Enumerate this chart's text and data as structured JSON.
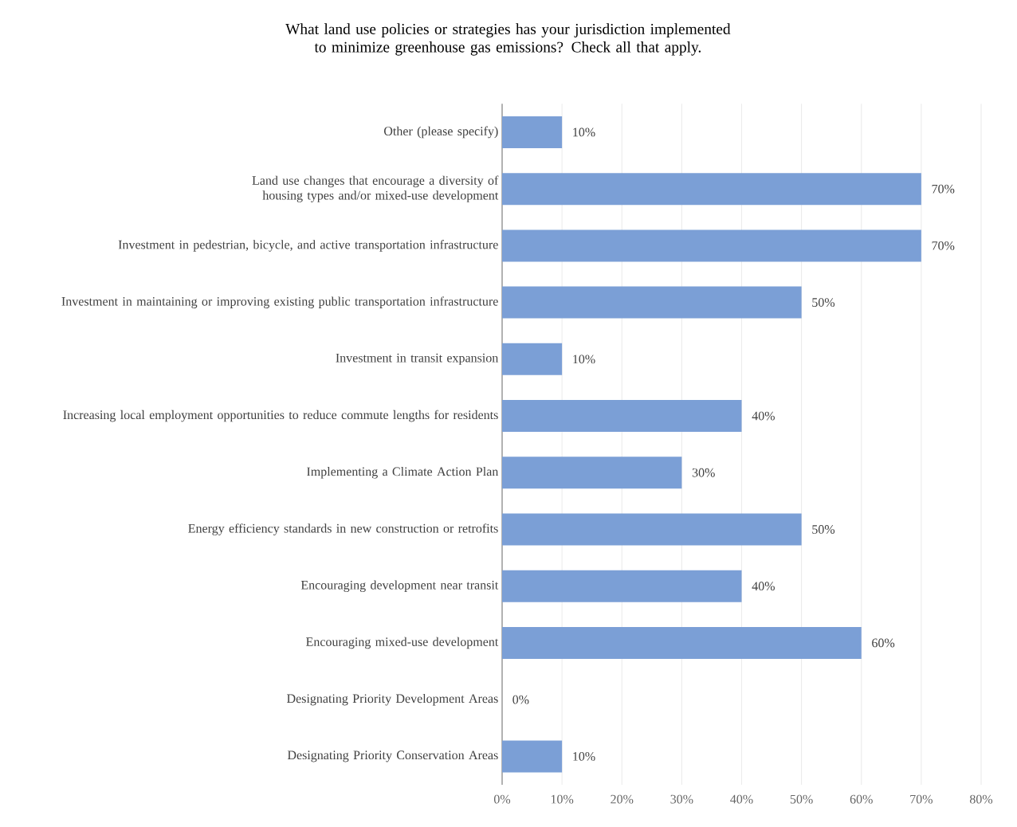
{
  "chart_data": {
    "type": "bar",
    "orientation": "horizontal",
    "title": "What land use policies or strategies has your jurisdiction implemented to minimize greenhouse gas emissions? Check all that apply.",
    "categories": [
      "Other (please specify)",
      "Land use changes that encourage a diversity of housing types and/or mixed-use development",
      "Investment in pedestrian, bicycle, and active transportation infrastructure",
      "Investment in maintaining or improving existing public transportation infrastructure",
      "Investment in transit expansion",
      "Increasing local employment opportunities to reduce commute lengths for residents",
      "Implementing a Climate Action Plan",
      "Energy efficiency standards in new construction or retrofits",
      "Encouraging development near transit",
      "Encouraging mixed-use development",
      "Designating Priority Development Areas",
      "Designating Priority Conservation Areas"
    ],
    "values": [
      10,
      70,
      70,
      50,
      10,
      40,
      30,
      50,
      40,
      60,
      0,
      10
    ],
    "value_labels": [
      "10%",
      "70%",
      "70%",
      "50%",
      "10%",
      "40%",
      "30%",
      "50%",
      "40%",
      "60%",
      "0%",
      "10%"
    ],
    "color": "#7b9fd6",
    "xlim": [
      0,
      80
    ],
    "xticks": [
      {
        "value": 0,
        "label": "0%"
      },
      {
        "value": 10,
        "label": "10%"
      },
      {
        "value": 20,
        "label": "20%"
      },
      {
        "value": 30,
        "label": "30%"
      },
      {
        "value": 40,
        "label": "40%"
      },
      {
        "value": 50,
        "label": "50%"
      },
      {
        "value": 60,
        "label": "60%"
      },
      {
        "value": 70,
        "label": "70%"
      },
      {
        "value": 80,
        "label": "80%"
      }
    ],
    "grid": "x"
  }
}
